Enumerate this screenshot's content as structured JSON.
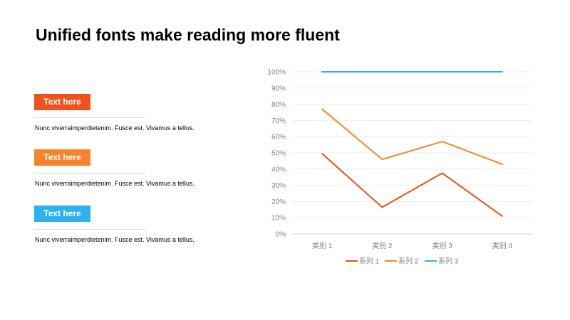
{
  "slide": {
    "title": "Unified fonts make reading more fluent"
  },
  "items": [
    {
      "label": "Text here",
      "color": "#f0521c",
      "text": "Nunc viverraimperdietenim. Fusce est. Vivamus a tellus."
    },
    {
      "label": "Text here",
      "color": "#f9822a",
      "text": "Nunc viverraimperdietenim. Fusce est. Vivamus a tellus."
    },
    {
      "label": "Text here",
      "color": "#2fb1f0",
      "text": "Nunc viverraimperdietenim. Fusce est. Vivamus a tellus."
    }
  ],
  "chart_data": {
    "type": "line",
    "categories": [
      "类别 1",
      "类别 2",
      "类别 3",
      "类别 4"
    ],
    "series": [
      {
        "name": "系列 1",
        "color": "#e2531f",
        "values": [
          49.5,
          16.5,
          37.5,
          11
        ]
      },
      {
        "name": "系列 2",
        "color": "#ee8a2d",
        "values": [
          77,
          46,
          57,
          43
        ]
      },
      {
        "name": "系列 3",
        "color": "#2fb1f0",
        "values": [
          100,
          100,
          100,
          100
        ]
      }
    ],
    "ylim": [
      0,
      100
    ],
    "yticks": [
      "0%",
      "10%",
      "20%",
      "30%",
      "40%",
      "50%",
      "60%",
      "70%",
      "80%",
      "90%",
      "100%"
    ],
    "grid": true,
    "legend": "bottom"
  }
}
